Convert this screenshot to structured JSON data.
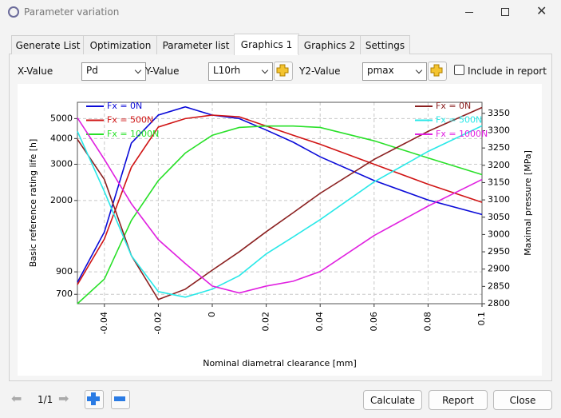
{
  "window": {
    "title": "Parameter variation"
  },
  "tabs": [
    "Generate List",
    "Optimization",
    "Parameter list",
    "Graphics 1",
    "Graphics 2",
    "Settings"
  ],
  "controls": {
    "x_label": "X-Value",
    "x_value": "Pd",
    "y_label": "Y-Value",
    "y_value": "L10rh",
    "y2_label": "Y2-Value",
    "y2_value": "pmax",
    "include": "Include in report"
  },
  "footer": {
    "page": "1/1",
    "buttons": [
      "Calculate",
      "Report",
      "Close"
    ]
  },
  "chart_data": {
    "type": "line",
    "xlabel": "Nominal diametral clearance [mm]",
    "ylabel": "Basic reference rating life [h]",
    "y2label": "Maximal pressure [MPa]",
    "x": [
      -0.05,
      -0.04,
      -0.03,
      -0.02,
      -0.01,
      0,
      0.01,
      0.02,
      0.03,
      0.04,
      0.06,
      0.08,
      0.1
    ],
    "xlim": [
      -0.05,
      0.1
    ],
    "xticks": [
      -0.04,
      -0.02,
      0,
      0.02,
      0.04,
      0.06,
      0.08,
      0.1
    ],
    "ylim": [
      630,
      6000
    ],
    "ylog": true,
    "yticks": [
      700,
      900,
      2000,
      3000,
      4000,
      5000
    ],
    "y2lim": [
      2800,
      3382
    ],
    "y2ticks": [
      2800,
      2850,
      2900,
      2950,
      3000,
      3050,
      3100,
      3150,
      3200,
      3250,
      3300,
      3350
    ],
    "grid": true,
    "series": [
      {
        "name": "Fx = 0N",
        "color": "#0a0ad8",
        "values": [
          800,
          1406,
          3800,
          5200,
          5700,
          5200,
          5000,
          4400,
          3840,
          3260,
          2500,
          2010,
          1710
        ]
      },
      {
        "name": "Fx = 500N",
        "color": "#d01414",
        "values": [
          780,
          1300,
          2900,
          4550,
          5000,
          5200,
          5100,
          4600,
          4150,
          3750,
          3000,
          2400,
          1960
        ]
      },
      {
        "name": "Fx = 1000N",
        "color": "#28e028",
        "values": [
          630,
          830,
          1600,
          2500,
          3400,
          4150,
          4530,
          4600,
          4600,
          4530,
          3900,
          3220,
          2670
        ]
      },
      {
        "name": "Fx = 0N",
        "color": "#8b2020",
        "axis": "y2",
        "values": [
          3275,
          3159,
          2939,
          2812,
          2842,
          2897,
          2950,
          3008,
          3063,
          3119,
          3217,
          3298,
          3367
        ]
      },
      {
        "name": "Fx = 500N",
        "color": "#28e8e8",
        "axis": "y2",
        "values": [
          3298,
          3124,
          2939,
          2835,
          2819,
          2842,
          2881,
          2944,
          2993,
          3043,
          3152,
          3240,
          3314
        ]
      },
      {
        "name": "Fx = 1000N",
        "color": "#e020e0",
        "axis": "y2",
        "values": [
          3337,
          3217,
          3089,
          2985,
          2916,
          2851,
          2831,
          2851,
          2865,
          2893,
          2997,
          3082,
          3159
        ]
      }
    ]
  }
}
